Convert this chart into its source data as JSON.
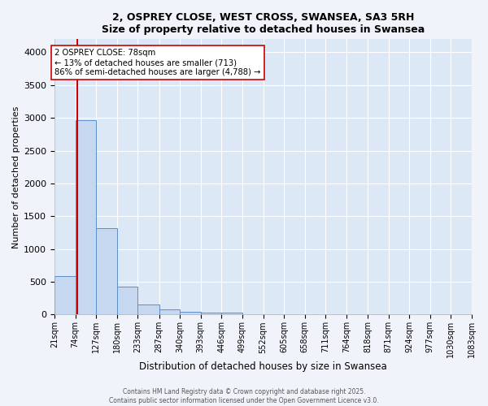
{
  "title_line1": "2, OSPREY CLOSE, WEST CROSS, SWANSEA, SA3 5RH",
  "title_line2": "Size of property relative to detached houses in Swansea",
  "xlabel": "Distribution of detached houses by size in Swansea",
  "ylabel": "Number of detached properties",
  "bin_edges": [
    21,
    74,
    127,
    180,
    233,
    287,
    340,
    393,
    446,
    499,
    552,
    605,
    658,
    711,
    764,
    818,
    871,
    924,
    977,
    1030,
    1083
  ],
  "bin_counts": [
    590,
    2970,
    1320,
    430,
    160,
    80,
    40,
    30,
    30,
    0,
    0,
    0,
    0,
    0,
    0,
    0,
    0,
    0,
    0,
    0
  ],
  "bar_color": "#c5d8f0",
  "bar_edge_color": "#5b8fc9",
  "property_size": 78,
  "vline_color": "#cc0000",
  "annotation_line1": "2 OSPREY CLOSE: 78sqm",
  "annotation_line2": "← 13% of detached houses are smaller (713)",
  "annotation_line3": "86% of semi-detached houses are larger (4,788) →",
  "annotation_box_color": "#ffffff",
  "annotation_box_edge_color": "#cc0000",
  "ylim": [
    0,
    4200
  ],
  "yticks": [
    0,
    500,
    1000,
    1500,
    2000,
    2500,
    3000,
    3500,
    4000
  ],
  "background_color": "#dce8f5",
  "grid_color": "#ffffff",
  "fig_bg_color": "#f0f4fa",
  "footer_line1": "Contains HM Land Registry data © Crown copyright and database right 2025.",
  "footer_line2": "Contains public sector information licensed under the Open Government Licence v3.0.",
  "tick_labels": [
    "21sqm",
    "74sqm",
    "127sqm",
    "180sqm",
    "233sqm",
    "287sqm",
    "340sqm",
    "393sqm",
    "446sqm",
    "499sqm",
    "552sqm",
    "605sqm",
    "658sqm",
    "711sqm",
    "764sqm",
    "818sqm",
    "871sqm",
    "924sqm",
    "977sqm",
    "1030sqm",
    "1083sqm"
  ]
}
